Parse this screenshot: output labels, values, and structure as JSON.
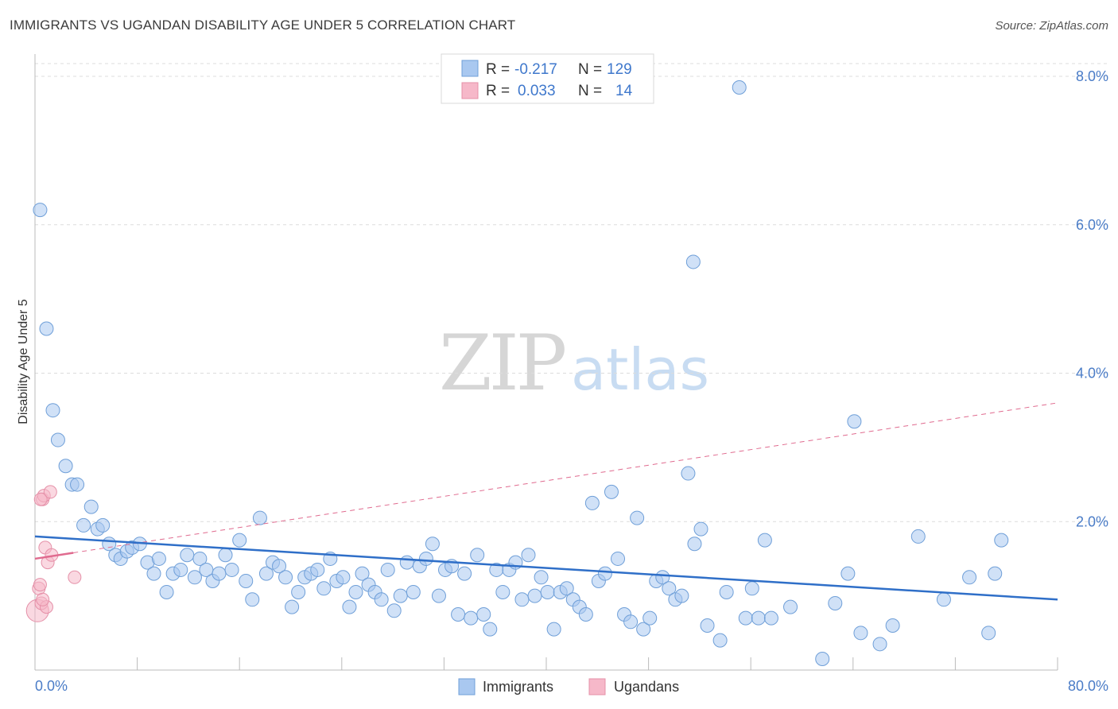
{
  "title": "IMMIGRANTS VS UGANDAN DISABILITY AGE UNDER 5 CORRELATION CHART",
  "source": "Source: ZipAtlas.com",
  "watermark": {
    "zip": "ZIP",
    "atlas": "atlas"
  },
  "colors": {
    "immigrants_fill": "#a9c8f0",
    "immigrants_stroke": "#6f9fd8",
    "immigrants_line": "#2f6fc8",
    "ugandans_fill": "#f6b8c9",
    "ugandans_stroke": "#e590a8",
    "ugandans_line": "#e06b8f",
    "grid": "#dcdcdc",
    "tick_text": "#4a7cc7"
  },
  "legend": {
    "rows": [
      {
        "r_label": "R =",
        "r_value": "-0.217",
        "n_label": "N =",
        "n_value": "129"
      },
      {
        "r_label": "R =",
        "r_value": "0.033",
        "n_label": "N =",
        "n_value": "14"
      }
    ]
  },
  "bottom_legend": [
    "Immigrants",
    "Ugandans"
  ],
  "chart_data": {
    "type": "scatter",
    "title": "IMMIGRANTS VS UGANDAN DISABILITY AGE UNDER 5 CORRELATION CHART",
    "xlabel": "",
    "ylabel": "Disability Age Under 5",
    "xlim": [
      0,
      80
    ],
    "ylim": [
      0,
      8.3
    ],
    "x_tick_labels": [
      "0.0%",
      "80.0%"
    ],
    "y_ticks": [
      2,
      4,
      6,
      8
    ],
    "y_tick_labels": [
      "2.0%",
      "4.0%",
      "6.0%",
      "8.0%"
    ],
    "grid": true,
    "legend_position": "top-center",
    "series": [
      {
        "name": "Immigrants",
        "R": -0.217,
        "N": 129,
        "trend": {
          "x": [
            0,
            80
          ],
          "y": [
            1.8,
            0.95
          ],
          "style": "solid"
        },
        "points": [
          [
            0.4,
            6.2
          ],
          [
            0.9,
            4.6
          ],
          [
            1.4,
            3.5
          ],
          [
            1.8,
            3.1
          ],
          [
            2.4,
            2.75
          ],
          [
            2.9,
            2.5
          ],
          [
            3.3,
            2.5
          ],
          [
            4.4,
            2.2
          ],
          [
            3.8,
            1.95
          ],
          [
            4.9,
            1.9
          ],
          [
            5.3,
            1.95
          ],
          [
            5.8,
            1.7
          ],
          [
            6.3,
            1.55
          ],
          [
            6.7,
            1.5
          ],
          [
            7.2,
            1.6
          ],
          [
            7.6,
            1.65
          ],
          [
            8.2,
            1.7
          ],
          [
            8.8,
            1.45
          ],
          [
            9.3,
            1.3
          ],
          [
            9.7,
            1.5
          ],
          [
            10.3,
            1.05
          ],
          [
            10.8,
            1.3
          ],
          [
            11.4,
            1.35
          ],
          [
            11.9,
            1.55
          ],
          [
            12.5,
            1.25
          ],
          [
            12.9,
            1.5
          ],
          [
            13.4,
            1.35
          ],
          [
            13.9,
            1.2
          ],
          [
            14.4,
            1.3
          ],
          [
            14.9,
            1.55
          ],
          [
            15.4,
            1.35
          ],
          [
            16.0,
            1.75
          ],
          [
            16.5,
            1.2
          ],
          [
            17.0,
            0.95
          ],
          [
            17.6,
            2.05
          ],
          [
            18.1,
            1.3
          ],
          [
            18.6,
            1.45
          ],
          [
            19.1,
            1.4
          ],
          [
            19.6,
            1.25
          ],
          [
            20.1,
            0.85
          ],
          [
            20.6,
            1.05
          ],
          [
            21.1,
            1.25
          ],
          [
            21.6,
            1.3
          ],
          [
            22.1,
            1.35
          ],
          [
            22.6,
            1.1
          ],
          [
            23.1,
            1.5
          ],
          [
            23.6,
            1.2
          ],
          [
            24.1,
            1.25
          ],
          [
            24.6,
            0.85
          ],
          [
            25.1,
            1.05
          ],
          [
            25.6,
            1.3
          ],
          [
            26.1,
            1.15
          ],
          [
            26.6,
            1.05
          ],
          [
            27.1,
            0.95
          ],
          [
            27.6,
            1.35
          ],
          [
            28.1,
            0.8
          ],
          [
            28.6,
            1.0
          ],
          [
            29.1,
            1.45
          ],
          [
            29.6,
            1.05
          ],
          [
            30.1,
            1.4
          ],
          [
            30.6,
            1.5
          ],
          [
            31.1,
            1.7
          ],
          [
            31.6,
            1.0
          ],
          [
            32.1,
            1.35
          ],
          [
            32.6,
            1.4
          ],
          [
            33.1,
            0.75
          ],
          [
            33.6,
            1.3
          ],
          [
            34.1,
            0.7
          ],
          [
            34.6,
            1.55
          ],
          [
            35.1,
            0.75
          ],
          [
            35.6,
            0.55
          ],
          [
            36.1,
            1.35
          ],
          [
            36.6,
            1.05
          ],
          [
            37.1,
            1.35
          ],
          [
            37.6,
            1.45
          ],
          [
            38.1,
            0.95
          ],
          [
            38.6,
            1.55
          ],
          [
            39.1,
            1.0
          ],
          [
            39.6,
            1.25
          ],
          [
            40.1,
            1.05
          ],
          [
            40.6,
            0.55
          ],
          [
            41.1,
            1.05
          ],
          [
            41.6,
            1.1
          ],
          [
            42.1,
            0.95
          ],
          [
            42.6,
            0.85
          ],
          [
            43.1,
            0.75
          ],
          [
            43.6,
            2.25
          ],
          [
            44.1,
            1.2
          ],
          [
            44.6,
            1.3
          ],
          [
            45.1,
            2.4
          ],
          [
            45.6,
            1.5
          ],
          [
            46.1,
            0.75
          ],
          [
            46.6,
            0.65
          ],
          [
            47.1,
            2.05
          ],
          [
            47.6,
            0.55
          ],
          [
            48.1,
            0.7
          ],
          [
            48.6,
            1.2
          ],
          [
            49.1,
            1.25
          ],
          [
            49.6,
            1.1
          ],
          [
            50.1,
            0.95
          ],
          [
            50.6,
            1.0
          ],
          [
            51.1,
            2.65
          ],
          [
            51.6,
            1.7
          ],
          [
            52.1,
            1.9
          ],
          [
            52.6,
            0.6
          ],
          [
            53.6,
            0.4
          ],
          [
            54.1,
            1.05
          ],
          [
            55.1,
            7.85
          ],
          [
            55.6,
            0.7
          ],
          [
            56.1,
            1.1
          ],
          [
            56.6,
            0.7
          ],
          [
            57.1,
            1.75
          ],
          [
            57.6,
            0.7
          ],
          [
            59.1,
            0.85
          ],
          [
            61.6,
            0.15
          ],
          [
            62.6,
            0.9
          ],
          [
            63.6,
            1.3
          ],
          [
            64.1,
            3.35
          ],
          [
            64.6,
            0.5
          ],
          [
            66.1,
            0.35
          ],
          [
            67.1,
            0.6
          ],
          [
            69.1,
            1.8
          ],
          [
            71.1,
            0.95
          ],
          [
            73.1,
            1.25
          ],
          [
            74.6,
            0.5
          ],
          [
            75.1,
            1.3
          ],
          [
            75.6,
            1.75
          ],
          [
            51.5,
            5.5
          ]
        ]
      },
      {
        "name": "Ugandans",
        "R": 0.033,
        "N": 14,
        "trend": {
          "x": [
            0,
            3
          ],
          "y": [
            1.5,
            1.58
          ],
          "style": "solid"
        },
        "trend_extended": {
          "x": [
            3,
            80
          ],
          "y": [
            1.58,
            3.6
          ],
          "style": "dashed"
        },
        "points": [
          [
            0.2,
            0.8
          ],
          [
            0.3,
            1.1
          ],
          [
            0.4,
            1.15
          ],
          [
            0.5,
            0.9
          ],
          [
            0.6,
            2.3
          ],
          [
            0.7,
            2.35
          ],
          [
            0.8,
            1.65
          ],
          [
            0.9,
            0.85
          ],
          [
            1.0,
            1.45
          ],
          [
            1.2,
            2.4
          ],
          [
            1.3,
            1.55
          ],
          [
            0.45,
            2.3
          ],
          [
            3.1,
            1.25
          ],
          [
            0.6,
            0.95
          ]
        ]
      }
    ]
  }
}
